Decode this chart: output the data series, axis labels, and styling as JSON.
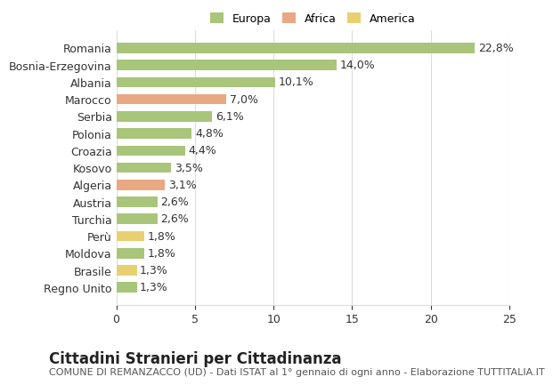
{
  "categories": [
    "Regno Unito",
    "Brasile",
    "Moldova",
    "Perù",
    "Turchia",
    "Austria",
    "Algeria",
    "Kosovo",
    "Croazia",
    "Polonia",
    "Serbia",
    "Marocco",
    "Albania",
    "Bosnia-Erzegovina",
    "Romania"
  ],
  "values": [
    1.3,
    1.3,
    1.8,
    1.8,
    2.6,
    2.6,
    3.1,
    3.5,
    4.4,
    4.8,
    6.1,
    7.0,
    10.1,
    14.0,
    22.8
  ],
  "continents": [
    "Europa",
    "America",
    "Europa",
    "America",
    "Europa",
    "Europa",
    "Africa",
    "Europa",
    "Europa",
    "Europa",
    "Europa",
    "Africa",
    "Europa",
    "Europa",
    "Europa"
  ],
  "labels": [
    "1,3%",
    "1,3%",
    "1,8%",
    "1,8%",
    "2,6%",
    "2,6%",
    "3,1%",
    "3,5%",
    "4,4%",
    "4,8%",
    "6,1%",
    "7,0%",
    "10,1%",
    "14,0%",
    "22,8%"
  ],
  "colors": {
    "Europa": "#a8c57a",
    "Africa": "#e8a882",
    "America": "#e8d070"
  },
  "legend_colors": {
    "Europa": "#a8c57a",
    "Africa": "#e8a882",
    "America": "#e8d070"
  },
  "background_color": "#ffffff",
  "grid_color": "#dddddd",
  "title": "Cittadini Stranieri per Cittadinanza",
  "subtitle": "COMUNE DI REMANZACCO (UD) - Dati ISTAT al 1° gennaio di ogni anno - Elaborazione TUTTITALIA.IT",
  "xlim": [
    0,
    25
  ],
  "xticks": [
    0,
    5,
    10,
    15,
    20,
    25
  ],
  "bar_height": 0.6,
  "label_fontsize": 9,
  "tick_fontsize": 9,
  "title_fontsize": 12,
  "subtitle_fontsize": 8
}
